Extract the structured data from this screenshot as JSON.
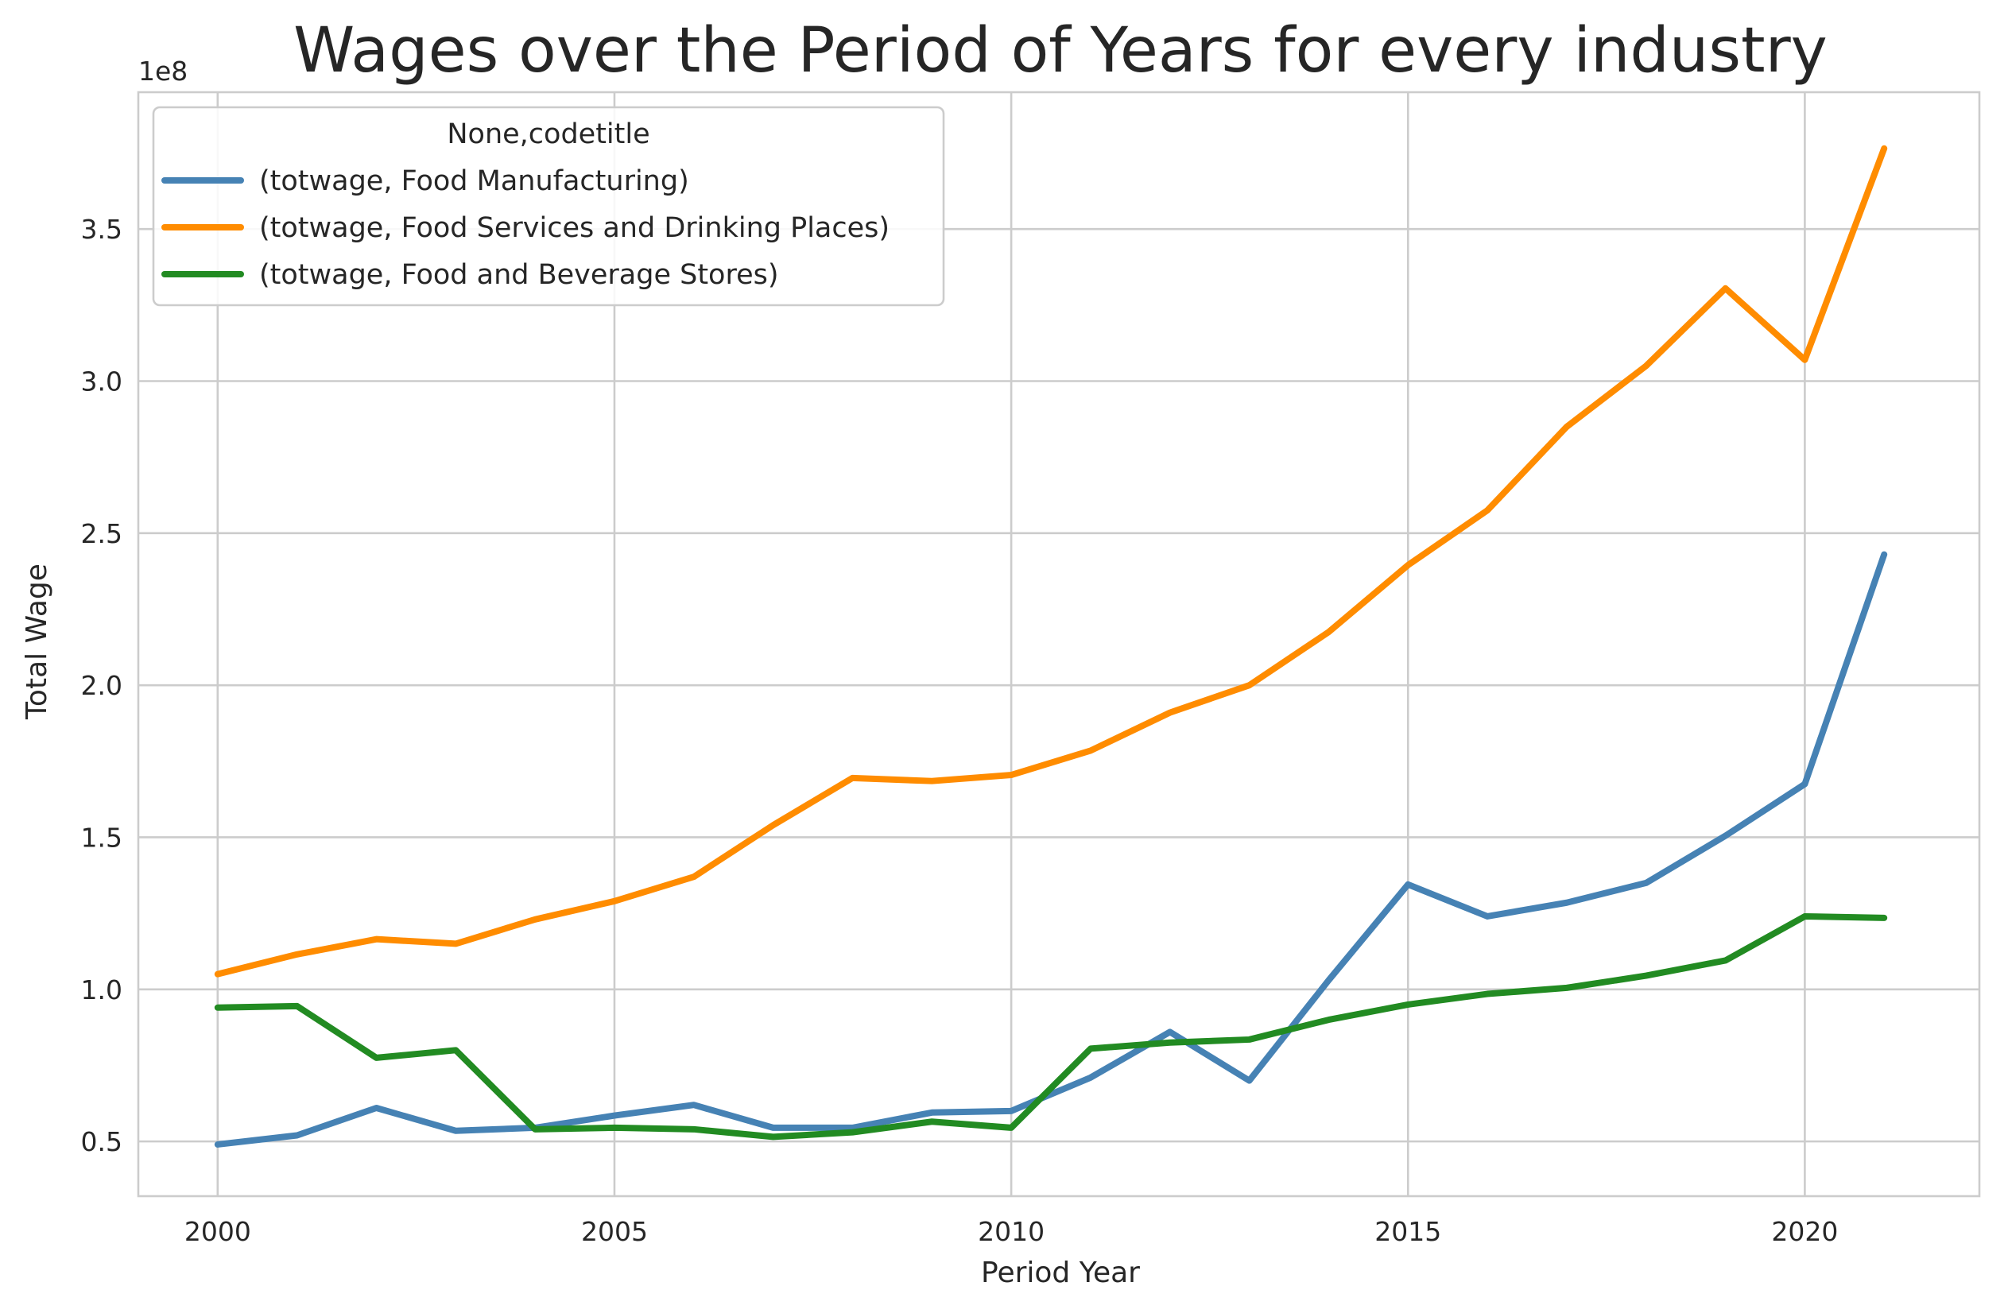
{
  "chart_data": {
    "type": "line",
    "title": "Wages over the Period of Years for every industry",
    "xlabel": "Period Year",
    "ylabel": "Total Wage",
    "offset_label": "1e8",
    "x": [
      2000,
      2001,
      2002,
      2003,
      2004,
      2005,
      2006,
      2007,
      2008,
      2009,
      2010,
      2011,
      2012,
      2013,
      2014,
      2015,
      2016,
      2017,
      2018,
      2019,
      2020,
      2021
    ],
    "xlim": [
      1999,
      2022.2
    ],
    "ylim": [
      0.32,
      3.95
    ],
    "x_ticks": [
      2000,
      2005,
      2010,
      2015,
      2020
    ],
    "x_tick_labels": [
      "2000",
      "2005",
      "2010",
      "2015",
      "2020"
    ],
    "y_ticks": [
      0.5,
      1.0,
      1.5,
      2.0,
      2.5,
      3.0,
      3.5
    ],
    "y_tick_labels": [
      "0.5",
      "1.0",
      "1.5",
      "2.0",
      "2.5",
      "3.0",
      "3.5"
    ],
    "grid": true,
    "legend_position": "top-left",
    "legend_title": "None,codetitle",
    "series": [
      {
        "name": "(totwage, Food Manufacturing)",
        "color": "#4682b4",
        "values": [
          0.49,
          0.52,
          0.61,
          0.535,
          0.545,
          0.585,
          0.62,
          0.545,
          0.545,
          0.595,
          0.6,
          0.71,
          0.86,
          0.7,
          1.03,
          1.345,
          1.24,
          1.285,
          1.35,
          1.505,
          1.675,
          2.43
        ]
      },
      {
        "name": "(totwage, Food Services and Drinking Places)",
        "color": "#ff8c00",
        "values": [
          1.05,
          1.115,
          1.165,
          1.15,
          1.23,
          1.29,
          1.37,
          1.54,
          1.695,
          1.685,
          1.705,
          1.785,
          1.91,
          2.0,
          2.175,
          2.395,
          2.575,
          2.85,
          3.05,
          3.305,
          3.07,
          3.765
        ]
      },
      {
        "name": "(totwage, Food and Beverage Stores)",
        "color": "#228b22",
        "values": [
          0.94,
          0.945,
          0.775,
          0.8,
          0.54,
          0.545,
          0.54,
          0.515,
          0.53,
          0.565,
          0.545,
          0.805,
          0.825,
          0.835,
          0.9,
          0.95,
          0.985,
          1.005,
          1.045,
          1.095,
          1.24,
          1.235
        ]
      }
    ]
  }
}
